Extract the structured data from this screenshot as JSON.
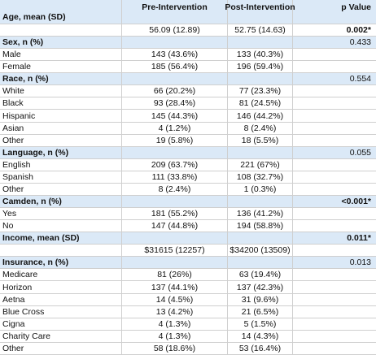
{
  "header": {
    "label": "Age, mean (SD)",
    "columns": [
      "Pre-Intervention",
      "Post-Intervention",
      "p Value"
    ]
  },
  "age": {
    "pre": "56.09 (12.89)",
    "post": "52.75 (14.63)",
    "p": "0.002*",
    "p_bold": true
  },
  "sections": [
    {
      "title": "Sex, n (%)",
      "p": "0.433",
      "p_bold": false,
      "rows": [
        {
          "label": "Male",
          "pre": "143 (43.6%)",
          "post": "133 (40.3%)"
        },
        {
          "label": "Female",
          "pre": "185 (56.4%)",
          "post": "196 (59.4%)"
        }
      ]
    },
    {
      "title": "Race, n (%)",
      "p": "0.554",
      "p_bold": false,
      "rows": [
        {
          "label": "White",
          "pre": "66 (20.2%)",
          "post": "77 (23.3%)"
        },
        {
          "label": "Black",
          "pre": "93 (28.4%)",
          "post": "81 (24.5%)"
        },
        {
          "label": "Hispanic",
          "pre": "145 (44.3%)",
          "post": "146 (44.2%)"
        },
        {
          "label": "Asian",
          "pre": "4 (1.2%)",
          "post": "8 (2.4%)"
        },
        {
          "label": "Other",
          "pre": "19 (5.8%)",
          "post": "18 (5.5%)"
        }
      ]
    },
    {
      "title": "Language, n (%)",
      "p": "0.055",
      "p_bold": false,
      "rows": [
        {
          "label": "English",
          "pre": "209 (63.7%)",
          "post": "221 (67%)"
        },
        {
          "label": "Spanish",
          "pre": "111 (33.8%)",
          "post": "108 (32.7%)"
        },
        {
          "label": "Other",
          "pre": "8 (2.4%)",
          "post": "1 (0.3%)"
        }
      ]
    },
    {
      "title": "Camden, n (%)",
      "p": "<0.001*",
      "p_bold": true,
      "rows": [
        {
          "label": "Yes",
          "pre": "181 (55.2%)",
          "post": "136 (41.2%)"
        },
        {
          "label": "No",
          "pre": "147 (44.8%)",
          "post": "194 (58.8%)"
        }
      ]
    },
    {
      "title": "Income, mean (SD)",
      "p": "0.011*",
      "p_bold": true,
      "rows": [
        {
          "pre": "$31615 (12257)",
          "post": "$34200 (13509)"
        }
      ]
    },
    {
      "title": "Insurance, n (%)",
      "p": "0.013",
      "p_bold": false,
      "rows": [
        {
          "label": "Medicare",
          "pre": "81 (26%)",
          "post": "63 (19.4%)"
        },
        {
          "label": "Horizon",
          "pre": "137 (44.1%)",
          "post": "137 (42.3%)"
        },
        {
          "label": "Aetna",
          "pre": "14 (4.5%)",
          "post": "31 (9.6%)"
        },
        {
          "label": "Blue Cross",
          "pre": "13 (4.2%)",
          "post": "21 (6.5%)"
        },
        {
          "label": "Cigna",
          "pre": "4 (1.3%)",
          "post": "5 (1.5%)"
        },
        {
          "label": "Charity Care",
          "pre": "4 (1.3%)",
          "post": "14 (4.3%)"
        },
        {
          "label": "Other",
          "pre": "58 (18.6%)",
          "post": "53 (16.4%)"
        }
      ]
    }
  ]
}
